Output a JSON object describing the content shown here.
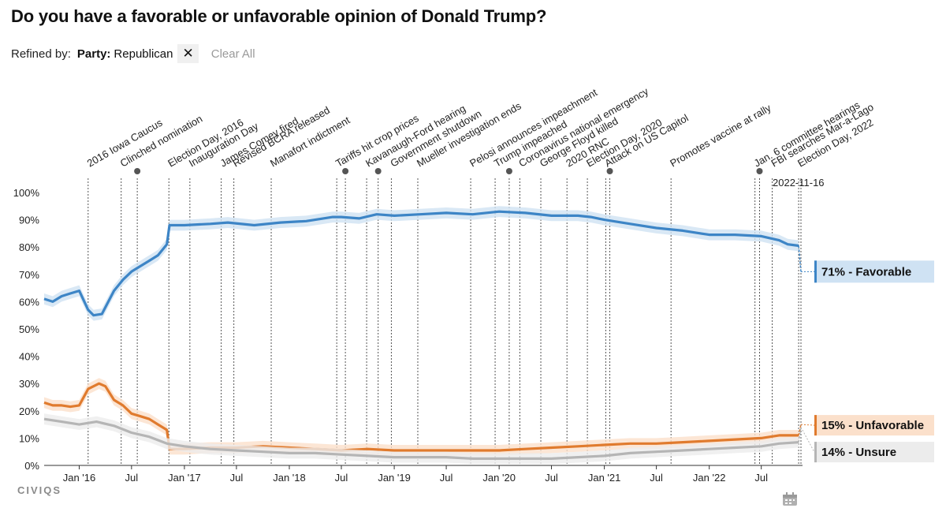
{
  "header": {
    "title": "Do you have a favorable or unfavorable opinion of Donald Trump?"
  },
  "filter": {
    "refined_by_label": "Refined by:",
    "chip_key": "Party:",
    "chip_value": "Republican",
    "clear_all_label": "Clear All"
  },
  "logo_text": "CIVIQS",
  "icons": {
    "chip_close": "close-icon",
    "calendar": "calendar-icon",
    "event_marker": "dot-icon"
  },
  "chart_data": {
    "type": "line",
    "title": "Do you have a favorable or unfavorable opinion of Donald Trump?",
    "ylim": [
      0,
      100
    ],
    "yticks": [
      "0%",
      "10%",
      "20%",
      "30%",
      "40%",
      "50%",
      "60%",
      "70%",
      "80%",
      "90%",
      "100%"
    ],
    "xrange": [
      "2015-09-01",
      "2022-11-16"
    ],
    "xticks": [
      {
        "date": "2016-01-01",
        "label": "Jan '16"
      },
      {
        "date": "2016-07-01",
        "label": "Jul"
      },
      {
        "date": "2017-01-01",
        "label": "Jan '17"
      },
      {
        "date": "2017-07-01",
        "label": "Jul"
      },
      {
        "date": "2018-01-01",
        "label": "Jan '18"
      },
      {
        "date": "2018-07-01",
        "label": "Jul"
      },
      {
        "date": "2019-01-01",
        "label": "Jan '19"
      },
      {
        "date": "2019-07-01",
        "label": "Jul"
      },
      {
        "date": "2020-01-01",
        "label": "Jan '20"
      },
      {
        "date": "2020-07-01",
        "label": "Jul"
      },
      {
        "date": "2021-01-01",
        "label": "Jan '21"
      },
      {
        "date": "2021-07-01",
        "label": "Jul"
      },
      {
        "date": "2022-01-01",
        "label": "Jan '22"
      },
      {
        "date": "2022-07-01",
        "label": "Jul"
      }
    ],
    "current_date_label": "2022-11-16",
    "events": [
      {
        "date": "2016-02-01",
        "label": "2016 Iowa Caucus"
      },
      {
        "date": "2016-05-26",
        "label": "Clinched nomination"
      },
      {
        "date": "2016-07-21",
        "label": "",
        "marker": true
      },
      {
        "date": "2016-11-08",
        "label": "Election Day, 2016"
      },
      {
        "date": "2017-01-20",
        "label": "Inauguration Day"
      },
      {
        "date": "2017-05-09",
        "label": "James Comey fired"
      },
      {
        "date": "2017-06-22",
        "label": "Revised BCRA released"
      },
      {
        "date": "2017-10-30",
        "label": "Manafort indictment"
      },
      {
        "date": "2018-06-15",
        "label": "Tariffs hit crop prices"
      },
      {
        "date": "2018-07-15",
        "label": "",
        "marker": true
      },
      {
        "date": "2018-09-27",
        "label": "Kavanaugh-Ford hearing"
      },
      {
        "date": "2018-11-06",
        "label": "",
        "marker": true
      },
      {
        "date": "2018-12-22",
        "label": "Government shutdown"
      },
      {
        "date": "2019-03-24",
        "label": "Mueller investigation ends"
      },
      {
        "date": "2019-09-24",
        "label": "Pelosi announces impeachment"
      },
      {
        "date": "2019-12-18",
        "label": "Trump impeached"
      },
      {
        "date": "2020-02-05",
        "label": "",
        "marker": true
      },
      {
        "date": "2020-03-13",
        "label": "Coronavirus national emergency"
      },
      {
        "date": "2020-05-25",
        "label": "George Floyd killed"
      },
      {
        "date": "2020-08-24",
        "label": "2020 RNC"
      },
      {
        "date": "2020-11-03",
        "label": "Election Day, 2020"
      },
      {
        "date": "2021-01-06",
        "label": "Attack on US Capitol"
      },
      {
        "date": "2021-01-20",
        "label": "",
        "marker": true
      },
      {
        "date": "2021-08-21",
        "label": "Promotes vaccine at rally"
      },
      {
        "date": "2022-06-09",
        "label": "Jan. 6 committee hearings"
      },
      {
        "date": "2022-06-25",
        "label": "",
        "marker": true
      },
      {
        "date": "2022-08-08",
        "label": "FBI searches Mar-a-Lago"
      },
      {
        "date": "2022-11-08",
        "label": "Election Day, 2022"
      },
      {
        "date": "2022-11-16",
        "label": ""
      }
    ],
    "series": [
      {
        "name": "Favorable",
        "end_label": "71% - Favorable",
        "color": "#3d85c6",
        "band_color": "#cfe2f3",
        "end_value": 71,
        "points": [
          [
            "2015-09-01",
            61
          ],
          [
            "2015-10-01",
            60
          ],
          [
            "2015-11-01",
            62
          ],
          [
            "2015-12-01",
            63
          ],
          [
            "2016-01-01",
            64
          ],
          [
            "2016-02-01",
            57
          ],
          [
            "2016-02-20",
            55
          ],
          [
            "2016-03-20",
            55.5
          ],
          [
            "2016-05-01",
            64
          ],
          [
            "2016-06-01",
            68
          ],
          [
            "2016-07-01",
            71
          ],
          [
            "2016-08-01",
            73
          ],
          [
            "2016-09-01",
            75
          ],
          [
            "2016-10-01",
            77
          ],
          [
            "2016-11-01",
            81
          ],
          [
            "2016-11-10",
            88
          ],
          [
            "2017-01-01",
            88
          ],
          [
            "2017-04-01",
            88.5
          ],
          [
            "2017-06-01",
            89
          ],
          [
            "2017-09-01",
            88
          ],
          [
            "2017-12-01",
            89
          ],
          [
            "2018-03-01",
            89.5
          ],
          [
            "2018-06-01",
            91
          ],
          [
            "2018-07-01",
            91
          ],
          [
            "2018-09-01",
            90.5
          ],
          [
            "2018-11-01",
            92
          ],
          [
            "2019-01-01",
            91.5
          ],
          [
            "2019-04-01",
            92
          ],
          [
            "2019-07-01",
            92.5
          ],
          [
            "2019-10-01",
            92
          ],
          [
            "2020-01-01",
            93
          ],
          [
            "2020-04-01",
            92.5
          ],
          [
            "2020-07-01",
            91.5
          ],
          [
            "2020-10-01",
            91.5
          ],
          [
            "2020-11-15",
            91
          ],
          [
            "2021-01-01",
            90
          ],
          [
            "2021-04-01",
            88.5
          ],
          [
            "2021-07-01",
            87
          ],
          [
            "2021-10-01",
            86
          ],
          [
            "2022-01-01",
            84.5
          ],
          [
            "2022-04-01",
            84.5
          ],
          [
            "2022-07-01",
            84
          ],
          [
            "2022-09-01",
            82.5
          ],
          [
            "2022-10-01",
            81
          ],
          [
            "2022-11-08",
            80.5
          ],
          [
            "2022-11-16",
            71
          ]
        ]
      },
      {
        "name": "Unfavorable",
        "end_label": "15% - Unfavorable",
        "color": "#e07b2e",
        "band_color": "#fbe0cb",
        "end_value": 15,
        "points": [
          [
            "2015-09-01",
            23
          ],
          [
            "2015-10-01",
            22
          ],
          [
            "2015-11-01",
            22
          ],
          [
            "2015-12-01",
            21.5
          ],
          [
            "2016-01-01",
            22
          ],
          [
            "2016-02-01",
            28
          ],
          [
            "2016-03-10",
            30
          ],
          [
            "2016-04-01",
            29
          ],
          [
            "2016-05-01",
            24
          ],
          [
            "2016-06-01",
            22
          ],
          [
            "2016-07-01",
            19
          ],
          [
            "2016-08-01",
            18
          ],
          [
            "2016-09-01",
            17
          ],
          [
            "2016-10-01",
            15
          ],
          [
            "2016-11-01",
            13
          ],
          [
            "2016-11-10",
            6
          ],
          [
            "2017-01-01",
            6
          ],
          [
            "2017-04-01",
            6.5
          ],
          [
            "2017-07-01",
            6.5
          ],
          [
            "2017-10-01",
            7
          ],
          [
            "2018-01-01",
            6.5
          ],
          [
            "2018-04-01",
            6
          ],
          [
            "2018-07-01",
            5.5
          ],
          [
            "2018-10-01",
            6
          ],
          [
            "2019-01-01",
            5.5
          ],
          [
            "2019-04-01",
            5.5
          ],
          [
            "2019-07-01",
            5.5
          ],
          [
            "2019-10-01",
            5.5
          ],
          [
            "2020-01-01",
            5.5
          ],
          [
            "2020-04-01",
            6
          ],
          [
            "2020-07-01",
            6.5
          ],
          [
            "2020-10-01",
            7
          ],
          [
            "2021-01-01",
            7.5
          ],
          [
            "2021-04-01",
            8
          ],
          [
            "2021-07-01",
            8
          ],
          [
            "2021-10-01",
            8.5
          ],
          [
            "2022-01-01",
            9
          ],
          [
            "2022-04-01",
            9.5
          ],
          [
            "2022-07-01",
            10
          ],
          [
            "2022-09-01",
            11
          ],
          [
            "2022-11-08",
            11
          ],
          [
            "2022-11-16",
            15
          ]
        ]
      },
      {
        "name": "Unsure",
        "end_label": "14% - Unsure",
        "color": "#b5b5b5",
        "band_color": "#ececec",
        "end_value": 14,
        "points": [
          [
            "2015-09-01",
            17
          ],
          [
            "2015-11-01",
            16
          ],
          [
            "2016-01-01",
            15
          ],
          [
            "2016-03-01",
            16
          ],
          [
            "2016-05-01",
            14.5
          ],
          [
            "2016-07-01",
            12
          ],
          [
            "2016-09-01",
            10.5
          ],
          [
            "2016-11-01",
            8
          ],
          [
            "2017-01-01",
            7
          ],
          [
            "2017-04-01",
            6
          ],
          [
            "2017-07-01",
            5.5
          ],
          [
            "2017-10-01",
            5
          ],
          [
            "2018-01-01",
            4.5
          ],
          [
            "2018-04-01",
            4.5
          ],
          [
            "2018-07-01",
            4
          ],
          [
            "2018-10-01",
            3.5
          ],
          [
            "2019-01-01",
            3
          ],
          [
            "2019-04-01",
            3
          ],
          [
            "2019-07-01",
            3
          ],
          [
            "2019-10-01",
            2.5
          ],
          [
            "2020-01-01",
            2.5
          ],
          [
            "2020-04-01",
            2.5
          ],
          [
            "2020-07-01",
            2.5
          ],
          [
            "2020-10-01",
            3
          ],
          [
            "2021-01-01",
            3.5
          ],
          [
            "2021-04-01",
            4.5
          ],
          [
            "2021-07-01",
            5
          ],
          [
            "2021-10-01",
            5.5
          ],
          [
            "2022-01-01",
            6
          ],
          [
            "2022-04-01",
            6.5
          ],
          [
            "2022-07-01",
            7
          ],
          [
            "2022-09-01",
            8
          ],
          [
            "2022-11-08",
            8.5
          ],
          [
            "2022-11-16",
            14
          ]
        ]
      }
    ]
  }
}
